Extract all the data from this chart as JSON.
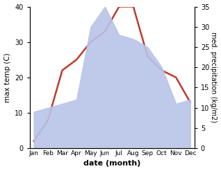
{
  "months": [
    "Jan",
    "Feb",
    "Mar",
    "Apr",
    "May",
    "Jun",
    "Jul",
    "Aug",
    "Sep",
    "Oct",
    "Nov",
    "Dec"
  ],
  "month_positions": [
    0,
    1,
    2,
    3,
    4,
    5,
    6,
    7,
    8,
    9,
    10,
    11
  ],
  "temperature": [
    2,
    8,
    22,
    25,
    30,
    33,
    40,
    40,
    26,
    22,
    20,
    13
  ],
  "precipitation": [
    9,
    10,
    11,
    12,
    30,
    35,
    28,
    27,
    25,
    20,
    11,
    12
  ],
  "temp_color": "#c0392b",
  "precip_fill_color": "#b8c4e8",
  "temp_ylim": [
    0,
    40
  ],
  "precip_ylim": [
    0,
    35
  ],
  "temp_yticks": [
    0,
    10,
    20,
    30,
    40
  ],
  "precip_yticks": [
    0,
    5,
    10,
    15,
    20,
    25,
    30,
    35
  ],
  "xlabel": "date (month)",
  "ylabel_left": "max temp (C)",
  "ylabel_right": "med. precipitation (kg/m2)",
  "background_color": "#ffffff"
}
